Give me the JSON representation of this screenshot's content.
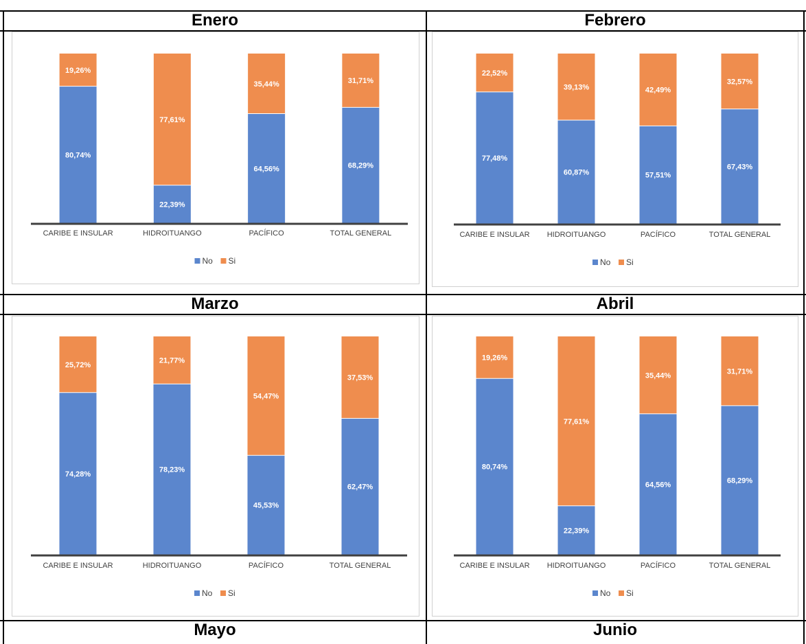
{
  "colors": {
    "no": "#5B86CD",
    "si": "#EF8D4E",
    "axis": "#404040",
    "label_text": "#ffffff",
    "category_text": "#404040"
  },
  "months": [
    "Enero",
    "Febrero",
    "Marzo",
    "Abril",
    "Mayo",
    "Junio"
  ],
  "legend": {
    "no": "No",
    "si": "Si"
  },
  "chart_data": [
    {
      "type": "bar",
      "stacked": true,
      "categories": [
        "CARIBE E INSULAR",
        "HIDROITUANGO",
        "PACÍFICO",
        "TOTAL GENERAL"
      ],
      "series": [
        {
          "name": "No",
          "values": [
            80.74,
            22.39,
            64.56,
            68.29
          ],
          "labels": [
            "80,74%",
            "22,39%",
            "64,56%",
            "68,29%"
          ]
        },
        {
          "name": "Si",
          "values": [
            19.26,
            77.61,
            35.44,
            31.71
          ],
          "labels": [
            "19,26%",
            "77,61%",
            "35,44%",
            "31,71%"
          ]
        }
      ],
      "ylim": [
        0,
        100
      ],
      "legend_position": "bottom"
    },
    {
      "type": "bar",
      "stacked": true,
      "categories": [
        "CARIBE E INSULAR",
        "HIDROITUANGO",
        "PACÍFICO",
        "TOTAL GENERAL"
      ],
      "series": [
        {
          "name": "No",
          "values": [
            77.48,
            60.87,
            57.51,
            67.43
          ],
          "labels": [
            "77,48%",
            "60,87%",
            "57,51%",
            "67,43%"
          ]
        },
        {
          "name": "Si",
          "values": [
            22.52,
            39.13,
            42.49,
            32.57
          ],
          "labels": [
            "22,52%",
            "39,13%",
            "42,49%",
            "32,57%"
          ]
        }
      ],
      "ylim": [
        0,
        100
      ],
      "legend_position": "bottom"
    },
    {
      "type": "bar",
      "stacked": true,
      "categories": [
        "CARIBE E INSULAR",
        "HIDROITUANGO",
        "PACÍFICO",
        "TOTAL GENERAL"
      ],
      "series": [
        {
          "name": "No",
          "values": [
            74.28,
            78.23,
            45.53,
            62.47
          ],
          "labels": [
            "74,28%",
            "78,23%",
            "45,53%",
            "62,47%"
          ]
        },
        {
          "name": "Si",
          "values": [
            25.72,
            21.77,
            54.47,
            37.53
          ],
          "labels": [
            "25,72%",
            "21,77%",
            "54,47%",
            "37,53%"
          ]
        }
      ],
      "ylim": [
        0,
        100
      ],
      "legend_position": "bottom"
    },
    {
      "type": "bar",
      "stacked": true,
      "categories": [
        "CARIBE E INSULAR",
        "HIDROITUANGO",
        "PACÍFICO",
        "TOTAL GENERAL"
      ],
      "series": [
        {
          "name": "No",
          "values": [
            80.74,
            22.39,
            64.56,
            68.29
          ],
          "labels": [
            "80,74%",
            "22,39%",
            "64,56%",
            "68,29%"
          ]
        },
        {
          "name": "Si",
          "values": [
            19.26,
            77.61,
            35.44,
            31.71
          ],
          "labels": [
            "19,26%",
            "77,61%",
            "35,44%",
            "31,71%"
          ]
        }
      ],
      "ylim": [
        0,
        100
      ],
      "legend_position": "bottom"
    }
  ]
}
